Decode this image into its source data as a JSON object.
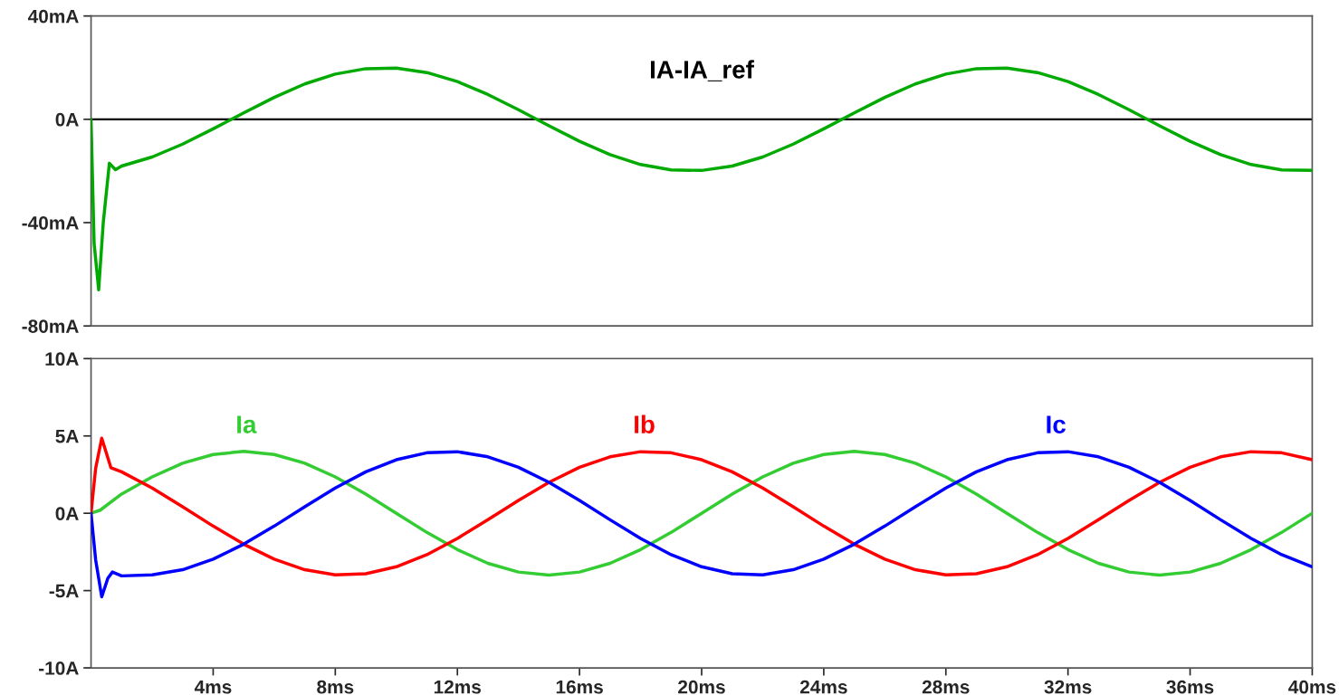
{
  "chart_data": [
    {
      "type": "line",
      "xlim": [
        0,
        40
      ],
      "ylim": [
        -80,
        40
      ],
      "yticks": [
        {
          "value": 40,
          "label": "40mA"
        },
        {
          "value": 0,
          "label": "0A"
        },
        {
          "value": -40,
          "label": "-40mA"
        },
        {
          "value": -80,
          "label": "-80mA"
        }
      ],
      "tick_labels": "y",
      "grid": false,
      "marker": "none",
      "line_style": "solid",
      "ref_lines": [
        {
          "axis": "y",
          "value": 0,
          "color": "#000000"
        }
      ],
      "series": [
        {
          "name": "IA-IA_ref",
          "color": "#00aa00",
          "x": [
            0,
            0.1,
            0.25,
            0.4,
            0.6,
            0.8,
            1,
            2,
            3,
            4,
            5,
            6,
            7,
            8,
            9,
            10,
            11,
            12,
            13,
            14,
            15,
            16,
            17,
            18,
            19,
            20,
            21,
            22,
            23,
            24,
            25,
            26,
            27,
            28,
            29,
            30,
            31,
            32,
            33,
            34,
            35,
            36,
            37,
            38,
            39,
            40
          ],
          "values": [
            0,
            -48,
            -66,
            -40,
            -17,
            -19.5,
            -18.1,
            -14.6,
            -9.6,
            -3.7,
            2.5,
            8.5,
            13.7,
            17.5,
            19.6,
            19.8,
            18.1,
            14.6,
            9.6,
            3.7,
            -2.5,
            -8.5,
            -13.7,
            -17.5,
            -19.6,
            -19.8,
            -18.1,
            -14.6,
            -9.6,
            -3.7,
            2.5,
            8.5,
            13.7,
            17.5,
            19.6,
            19.8,
            18.1,
            14.6,
            9.6,
            3.7,
            -2.5,
            -8.5,
            -13.7,
            -17.5,
            -19.6,
            -19.8
          ]
        }
      ]
    },
    {
      "type": "line",
      "xlim": [
        0,
        40
      ],
      "ylim": [
        -10,
        10
      ],
      "xticks": [
        {
          "value": 4,
          "label": "4ms"
        },
        {
          "value": 8,
          "label": "8ms"
        },
        {
          "value": 12,
          "label": "12ms"
        },
        {
          "value": 16,
          "label": "16ms"
        },
        {
          "value": 20,
          "label": "20ms"
        },
        {
          "value": 24,
          "label": "24ms"
        },
        {
          "value": 28,
          "label": "28ms"
        },
        {
          "value": 32,
          "label": "32ms"
        },
        {
          "value": 36,
          "label": "36ms"
        },
        {
          "value": 40,
          "label": "40ms"
        }
      ],
      "yticks": [
        {
          "value": 10,
          "label": "10A"
        },
        {
          "value": 5,
          "label": "5A"
        },
        {
          "value": 0,
          "label": "0A"
        },
        {
          "value": -5,
          "label": "-5A"
        },
        {
          "value": -10,
          "label": "-10A"
        }
      ],
      "grid": false,
      "marker": "none",
      "line_style": "solid",
      "series": [
        {
          "name": "Ia",
          "color": "#33cc33",
          "x": [
            0,
            0.3,
            1,
            2,
            3,
            4,
            5,
            6,
            7,
            8,
            9,
            10,
            11,
            12,
            13,
            14,
            15,
            16,
            17,
            18,
            19,
            20,
            21,
            22,
            23,
            24,
            25,
            26,
            27,
            28,
            29,
            30,
            31,
            32,
            33,
            34,
            35,
            36,
            37,
            38,
            39,
            40
          ],
          "values": [
            0,
            0.2,
            1.24,
            2.35,
            3.24,
            3.8,
            4,
            3.8,
            3.24,
            2.35,
            1.24,
            0,
            -1.24,
            -2.35,
            -3.24,
            -3.8,
            -4,
            -3.8,
            -3.24,
            -2.35,
            -1.24,
            0,
            1.24,
            2.35,
            3.24,
            3.8,
            4,
            3.8,
            3.24,
            2.35,
            1.24,
            0,
            -1.24,
            -2.35,
            -3.24,
            -3.8,
            -4,
            -3.8,
            -3.24,
            -2.35,
            -1.24,
            0
          ]
        },
        {
          "name": "Ib",
          "color": "#ff0000",
          "x": [
            0,
            0.15,
            0.35,
            0.65,
            1,
            2,
            3,
            4,
            5,
            6,
            7,
            8,
            9,
            10,
            11,
            12,
            13,
            14,
            15,
            16,
            17,
            18,
            19,
            20,
            21,
            22,
            23,
            24,
            25,
            26,
            27,
            28,
            29,
            30,
            31,
            32,
            33,
            34,
            35,
            36,
            37,
            38,
            39,
            40
          ],
          "values": [
            0,
            2.9,
            4.85,
            2.95,
            2.68,
            1.63,
            0.42,
            -0.83,
            -2,
            -2.97,
            -3.65,
            -3.98,
            -3.91,
            -3.46,
            -2.68,
            -1.63,
            -0.42,
            0.83,
            2,
            2.97,
            3.65,
            3.98,
            3.91,
            3.46,
            2.68,
            1.63,
            0.42,
            -0.83,
            -2,
            -2.97,
            -3.65,
            -3.98,
            -3.91,
            -3.46,
            -2.68,
            -1.63,
            -0.42,
            0.83,
            2,
            2.97,
            3.65,
            3.98,
            3.91,
            3.46
          ]
        },
        {
          "name": "Ic",
          "color": "#0000ff",
          "x": [
            0,
            0.15,
            0.35,
            0.55,
            0.7,
            1,
            2,
            3,
            4,
            5,
            6,
            7,
            8,
            9,
            10,
            11,
            12,
            13,
            14,
            15,
            16,
            17,
            18,
            19,
            20,
            21,
            22,
            23,
            24,
            25,
            26,
            27,
            28,
            29,
            30,
            31,
            32,
            33,
            34,
            35,
            36,
            37,
            38,
            39,
            40
          ],
          "values": [
            0,
            -3,
            -5.4,
            -4.2,
            -3.8,
            -4.05,
            -3.98,
            -3.65,
            -2.97,
            -2,
            -0.83,
            0.42,
            1.63,
            2.68,
            3.46,
            3.91,
            3.98,
            3.65,
            2.97,
            2,
            0.83,
            -0.42,
            -1.63,
            -2.68,
            -3.46,
            -3.91,
            -3.98,
            -3.65,
            -2.97,
            -2,
            -0.83,
            0.42,
            1.63,
            2.68,
            3.46,
            3.91,
            3.98,
            3.65,
            2.97,
            2,
            0.83,
            -0.42,
            -1.63,
            -2.68,
            -3.46
          ]
        }
      ]
    }
  ]
}
